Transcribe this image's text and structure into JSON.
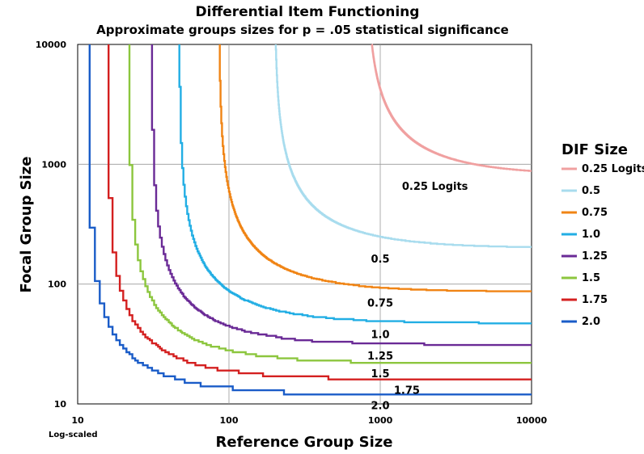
{
  "chart_data": {
    "type": "line",
    "title": "Differential Item Functioning",
    "subtitle": "Approximate groups sizes for p = .05 statistical significance",
    "xlabel": "Reference Group Size",
    "ylabel": "Focal Group Size",
    "scale_note": "Log-scaled",
    "x_scale": "log",
    "y_scale": "log",
    "xlim": [
      10,
      10000
    ],
    "ylim": [
      10,
      10000
    ],
    "x_ticks": [
      "10",
      "100",
      "1000",
      "10000"
    ],
    "y_ticks": [
      "10",
      "100",
      "1000",
      "10000"
    ],
    "grid": true,
    "legend_title": "DIF Size",
    "legend_position": "right",
    "series": [
      {
        "name": "0.25 Logits",
        "dif": 0.25,
        "color": "#f0a0a0",
        "label": "0.25 Logits",
        "asymptote": 810
      },
      {
        "name": "0.5",
        "dif": 0.5,
        "color": "#a8dcee",
        "label": "0.5",
        "asymptote": 200
      },
      {
        "name": "0.75",
        "dif": 0.75,
        "color": "#f08414",
        "label": "0.75",
        "asymptote": 86
      },
      {
        "name": "1.0",
        "dif": 1.0,
        "color": "#22aee4",
        "label": "1.0",
        "asymptote": 47
      },
      {
        "name": "1.25",
        "dif": 1.25,
        "color": "#6a2a96",
        "label": "1.25",
        "asymptote": 31
      },
      {
        "name": "1.5",
        "dif": 1.5,
        "color": "#8cc63e",
        "label": "1.5",
        "asymptote": 22
      },
      {
        "name": "1.75",
        "dif": 1.75,
        "color": "#d42020",
        "label": "1.75",
        "asymptote": 16
      },
      {
        "name": "2.0",
        "dif": 2.0,
        "color": "#1a5cc8",
        "label": "2.0",
        "asymptote": 12
      }
    ]
  }
}
